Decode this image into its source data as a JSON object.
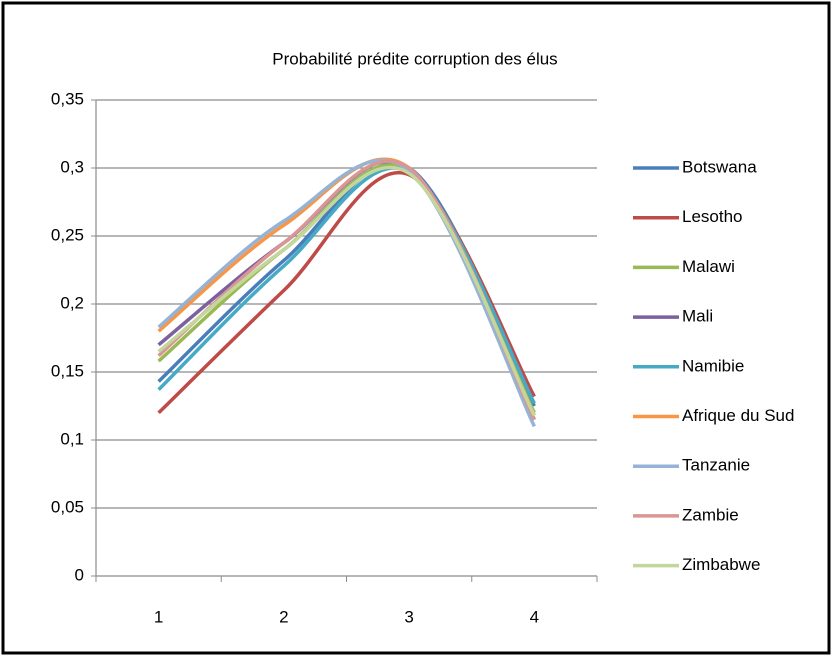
{
  "chart_data": {
    "type": "line",
    "title": "Probabilité prédite corruption des élus",
    "categories": [
      "1",
      "2",
      "3",
      "4"
    ],
    "series": [
      {
        "name": "Botswana",
        "color": "#4a7ebb",
        "values": [
          0.143,
          0.232,
          0.3,
          0.125
        ]
      },
      {
        "name": "Lesotho",
        "color": "#be4b48",
        "values": [
          0.12,
          0.21,
          0.295,
          0.132
        ]
      },
      {
        "name": "Malawi",
        "color": "#98b954",
        "values": [
          0.158,
          0.24,
          0.298,
          0.12
        ]
      },
      {
        "name": "Mali",
        "color": "#7d60a0",
        "values": [
          0.17,
          0.245,
          0.3,
          0.115
        ]
      },
      {
        "name": "Namibie",
        "color": "#46aac5",
        "values": [
          0.137,
          0.228,
          0.297,
          0.127
        ]
      },
      {
        "name": "Afrique du Sud",
        "color": "#f79646",
        "values": [
          0.18,
          0.258,
          0.3,
          0.118
        ]
      },
      {
        "name": "Tanzanie",
        "color": "#95b3d7",
        "values": [
          0.183,
          0.261,
          0.298,
          0.11
        ]
      },
      {
        "name": "Zambie",
        "color": "#d99694",
        "values": [
          0.162,
          0.245,
          0.3,
          0.115
        ]
      },
      {
        "name": "Zimbabwe",
        "color": "#c3d69b",
        "values": [
          0.165,
          0.24,
          0.296,
          0.118
        ]
      }
    ],
    "ylim": [
      0,
      0.35
    ],
    "yticks": [
      0,
      {
        "value": 0.05,
        "label": "0,05"
      },
      {
        "value": 0.1,
        "label": "0,1"
      },
      {
        "value": 0.15,
        "label": "0,15"
      },
      {
        "value": 0.2,
        "label": "0,2"
      },
      {
        "value": 0.25,
        "label": "0,25"
      },
      {
        "value": 0.3,
        "label": "0,3"
      },
      {
        "value": 0.35,
        "label": "0,35"
      }
    ],
    "grid": true,
    "smooth": true,
    "legend": "right"
  }
}
